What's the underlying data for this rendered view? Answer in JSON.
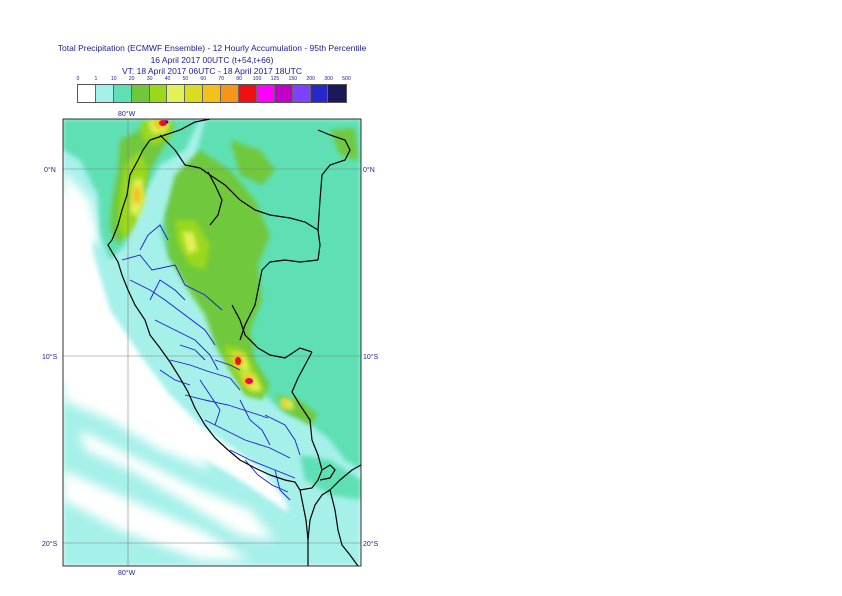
{
  "title": {
    "line1": "Total Precipitation (ECMWF Ensemble) - 12 Hourly Accumulation - 95th Percentile",
    "line2": "16 April 2017 00UTC (t+54,t+66)",
    "line3": "VT: 18 April 2017 06UTC - 18 April 2017 18UTC"
  },
  "legend": {
    "thresholds": [
      "0",
      "1",
      "10",
      "20",
      "30",
      "40",
      "50",
      "60",
      "70",
      "80",
      "100",
      "125",
      "150",
      "200",
      "300",
      "500"
    ],
    "colors": [
      "#ffffff",
      "#a6f0ea",
      "#5fe0b4",
      "#6fc83c",
      "#9ad81e",
      "#e2f05a",
      "#d8dc22",
      "#f4c01a",
      "#f5961a",
      "#f01010",
      "#ff00ff",
      "#c000c8",
      "#7f40ff",
      "#2828c8",
      "#1a1a5a"
    ]
  },
  "map": {
    "lon_labels": {
      "top": "80°W",
      "bottom": "80°W"
    },
    "lat_labels": {
      "left": [
        "0°N",
        "10°S",
        "20°S"
      ],
      "right": [
        "0°N",
        "10°S",
        "20°S"
      ]
    },
    "colors": {
      "sea_light": "#a6f0ea",
      "mid_green": "#5fe0b4",
      "green": "#6fc83c",
      "lime": "#9ad81e",
      "yellow": "#e2f05a",
      "orange": "#f4c01a",
      "red": "#f01010",
      "magenta": "#c000c8",
      "coast": "#000000",
      "admin": "#1c1ccc",
      "grid": "#808080"
    }
  }
}
